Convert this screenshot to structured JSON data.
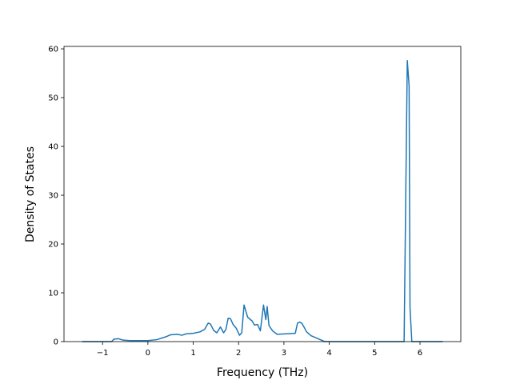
{
  "chart_data": {
    "type": "line",
    "x_label": "Frequency (THz)",
    "y_label": "Density of States",
    "series": [
      {
        "color": "#1f77b4",
        "x": [
          -1.45,
          -0.8,
          -0.75,
          -0.65,
          -0.55,
          -0.4,
          0,
          0.2,
          0.4,
          0.5,
          0.65,
          0.75,
          0.85,
          1.0,
          1.15,
          1.25,
          1.33,
          1.38,
          1.45,
          1.52,
          1.6,
          1.67,
          1.72,
          1.77,
          1.82,
          1.88,
          1.95,
          2.02,
          2.07,
          2.12,
          2.2,
          2.3,
          2.35,
          2.42,
          2.48,
          2.55,
          2.6,
          2.63,
          2.67,
          2.75,
          2.85,
          3.05,
          3.25,
          3.3,
          3.35,
          3.4,
          3.5,
          3.6,
          3.75,
          3.9,
          4.5,
          5.65,
          5.72,
          5.76,
          5.78,
          5.82,
          6.5
        ],
        "values": [
          0,
          0,
          0.5,
          0.6,
          0.3,
          0.2,
          0.2,
          0.4,
          1.0,
          1.4,
          1.5,
          1.3,
          1.6,
          1.7,
          2.0,
          2.5,
          3.8,
          3.6,
          2.3,
          1.8,
          3.0,
          1.8,
          2.5,
          4.8,
          4.7,
          3.5,
          2.7,
          1.3,
          1.8,
          7.5,
          5.0,
          4.2,
          3.4,
          3.5,
          2.2,
          7.5,
          4.5,
          7.2,
          3.3,
          2.2,
          1.5,
          1.6,
          1.7,
          3.8,
          4.0,
          3.7,
          2.0,
          1.2,
          0.6,
          0,
          0,
          0,
          57.6,
          52.5,
          7.0,
          0,
          0
        ]
      }
    ],
    "xlim": [
      -1.85,
      6.9
    ],
    "ylim": [
      0,
      60.5
    ],
    "xticks": [
      {
        "value": -1,
        "label": "−1"
      },
      0,
      1,
      2,
      3,
      4,
      5,
      6
    ],
    "yticks": [
      0,
      10,
      20,
      30,
      40,
      50,
      60
    ]
  }
}
